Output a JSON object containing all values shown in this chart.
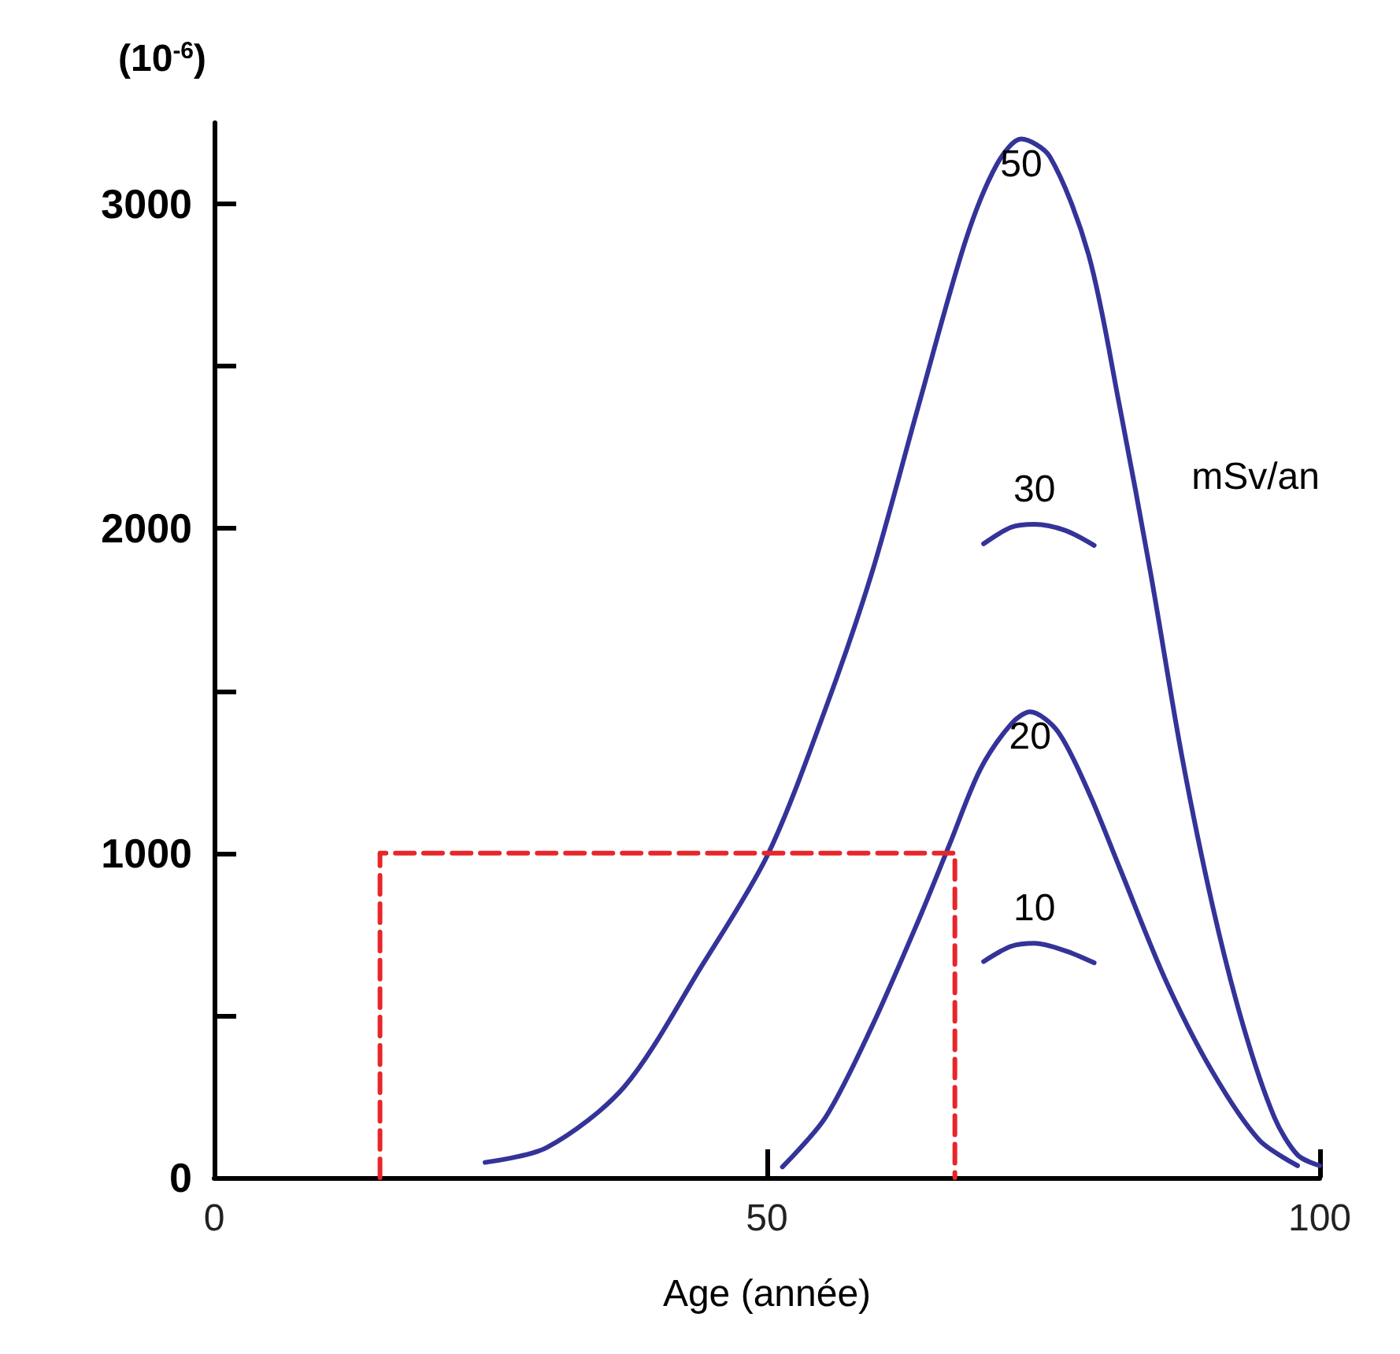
{
  "chart_data": {
    "type": "line",
    "title": "(10$^{-6}$)",
    "xlabel": "Age (année)",
    "xlim": [
      0,
      100
    ],
    "xticks": [
      0,
      50,
      100
    ],
    "ylim": [
      0,
      3250
    ],
    "yticks": [
      0,
      {
        "value": 500,
        "label": null
      },
      1000,
      {
        "value": 1500,
        "label": null
      },
      2000,
      {
        "value": 2500,
        "label": null
      },
      3000
    ],
    "grid": false,
    "legend": false,
    "marker": "none",
    "series": [
      {
        "name": "50",
        "color": "#333399",
        "line_style": "solid",
        "x": [
          24.5,
          30.1,
          37.1,
          44.1,
          50.1,
          55.3,
          59.5,
          63.7,
          68,
          70.8,
          73,
          75.6,
          79.1,
          81.9,
          84.7,
          87.5,
          90.3,
          93.1,
          95.9,
          98,
          100
        ],
        "values": [
          47,
          93,
          280,
          652,
          997,
          1445,
          1864,
          2377,
          2890,
          3122,
          3200,
          3145,
          2843,
          2377,
          1864,
          1305,
          839,
          466,
          186,
          70,
          37
        ]
      },
      {
        "name": "30",
        "color": "#333399",
        "line_style": "solid",
        "x": [
          69.6,
          72.1,
          74.2,
          77,
          79.6
        ],
        "values": [
          1953,
          2004,
          2013,
          1994,
          1948
        ]
      },
      {
        "name": "20",
        "color": "#333399",
        "line_style": "solid",
        "x": [
          51.4,
          55.3,
          59.5,
          63.7,
          66.5,
          69.3,
          72.1,
          73.8,
          76.3,
          79.1,
          81.9,
          86.1,
          90.3,
          94.5,
          98
        ],
        "values": [
          33,
          186,
          466,
          792,
          1025,
          1258,
          1398,
          1435,
          1375,
          1188,
          955,
          606,
          326,
          117,
          37
        ]
      },
      {
        "name": "10",
        "color": "#333399",
        "line_style": "solid",
        "x": [
          69.6,
          72.1,
          74.2,
          77,
          79.6
        ],
        "values": [
          666,
          713,
          722,
          699,
          662
        ]
      },
      {
        "color": "#e8262a",
        "line_style": "dashed",
        "x": [
          15,
          15,
          67,
          67
        ],
        "values": [
          0,
          1000,
          1000,
          0
        ]
      }
    ],
    "annotations": [
      "mSv/an"
    ]
  }
}
